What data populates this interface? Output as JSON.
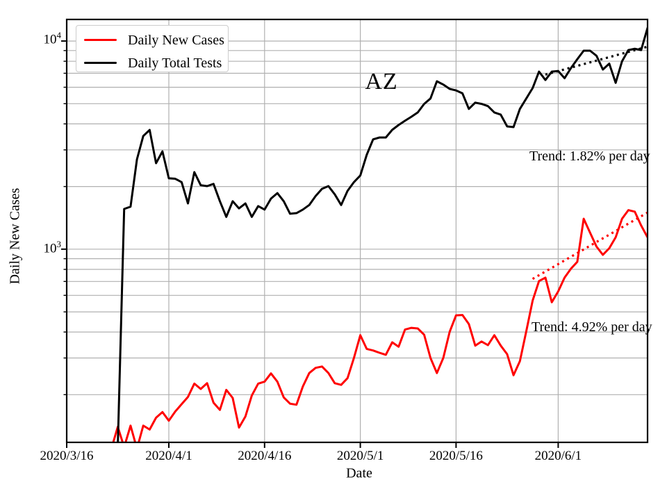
{
  "figure": {
    "state_label": "AZ",
    "x_title": "Date",
    "y_title": "Daily New Cases"
  },
  "legend": {
    "items": [
      {
        "label": "Daily New Cases",
        "color": "#ff0000"
      },
      {
        "label": "Daily Total Tests",
        "color": "#000000"
      }
    ]
  },
  "annotations": [
    {
      "text": "Trend: 1.82% per day",
      "series": "Daily Total Tests"
    },
    {
      "text": "Trend: 4.92% per day",
      "series": "Daily New Cases"
    }
  ],
  "chart_data": {
    "type": "line",
    "title": "AZ",
    "xlabel": "Date",
    "ylabel": "Daily New Cases",
    "grid": true,
    "grid_color": "#b0b0b0",
    "legend_position": "upper left",
    "x_axis": {
      "start": "2020/3/16",
      "end": "2020/6/15",
      "ticks": [
        "2020/3/16",
        "2020/4/1",
        "2020/4/16",
        "2020/5/1",
        "2020/5/16",
        "2020/6/1"
      ]
    },
    "y_axis": {
      "scale": "log",
      "range": [
        118,
        12700
      ],
      "major_ticks": [
        {
          "base": "10",
          "exp": "3",
          "value": 1000
        },
        {
          "base": "10",
          "exp": "4",
          "value": 10000
        }
      ]
    },
    "series": [
      {
        "name": "Daily New Cases",
        "color": "#ff0000",
        "style": "solid",
        "start_date": "2020/3/23",
        "values": [
          110,
          140,
          112,
          142,
          110,
          142,
          136,
          155,
          165,
          150,
          166,
          180,
          195,
          226,
          213,
          227,
          183,
          169,
          211,
          193,
          139,
          157,
          198,
          226,
          231,
          253,
          231,
          194,
          181,
          179,
          219,
          254,
          269,
          273,
          254,
          227,
          223,
          240,
          300,
          386,
          332,
          326,
          318,
          311,
          357,
          340,
          411,
          419,
          416,
          388,
          300,
          254,
          300,
          401,
          481,
          483,
          437,
          344,
          360,
          346,
          386,
          344,
          313,
          248,
          290,
          404,
          566,
          703,
          730,
          556,
          627,
          730,
          806,
          870,
          1400,
          1200,
          1030,
          940,
          1010,
          1140,
          1400,
          1540,
          1515,
          1300,
          1140
        ]
      },
      {
        "name": "Daily Total Tests",
        "color": "#000000",
        "style": "solid",
        "start_date": "2020/3/24",
        "values": [
          112,
          1560,
          1600,
          2700,
          3500,
          3740,
          2590,
          2950,
          2190,
          2180,
          2100,
          1660,
          2345,
          2030,
          2010,
          2060,
          1700,
          1430,
          1700,
          1570,
          1660,
          1430,
          1610,
          1550,
          1750,
          1860,
          1700,
          1480,
          1490,
          1550,
          1630,
          1800,
          1950,
          2010,
          1835,
          1630,
          1905,
          2100,
          2260,
          2840,
          3370,
          3440,
          3440,
          3745,
          3950,
          4140,
          4330,
          4540,
          4990,
          5300,
          6410,
          6180,
          5890,
          5790,
          5610,
          4720,
          5060,
          4990,
          4870,
          4540,
          4430,
          3890,
          3860,
          4720,
          5300,
          5940,
          7130,
          6500,
          7130,
          7180,
          6630,
          7420,
          8180,
          8990,
          8990,
          8500,
          7300,
          7790,
          6300,
          8000,
          9050,
          9180,
          9050,
          11560
        ]
      },
      {
        "name": "Daily New Cases trend (4.92% per day)",
        "color": "#ff0000",
        "style": "dotted",
        "start_date": "2020/5/28",
        "end_date": "2020/6/15",
        "start_value": 720,
        "end_value": 1500
      },
      {
        "name": "Daily Total Tests trend (1.82% per day)",
        "color": "#000000",
        "style": "dotted",
        "start_date": "2020/5/30",
        "end_date": "2020/6/15",
        "start_value": 6900,
        "end_value": 9400
      }
    ]
  }
}
